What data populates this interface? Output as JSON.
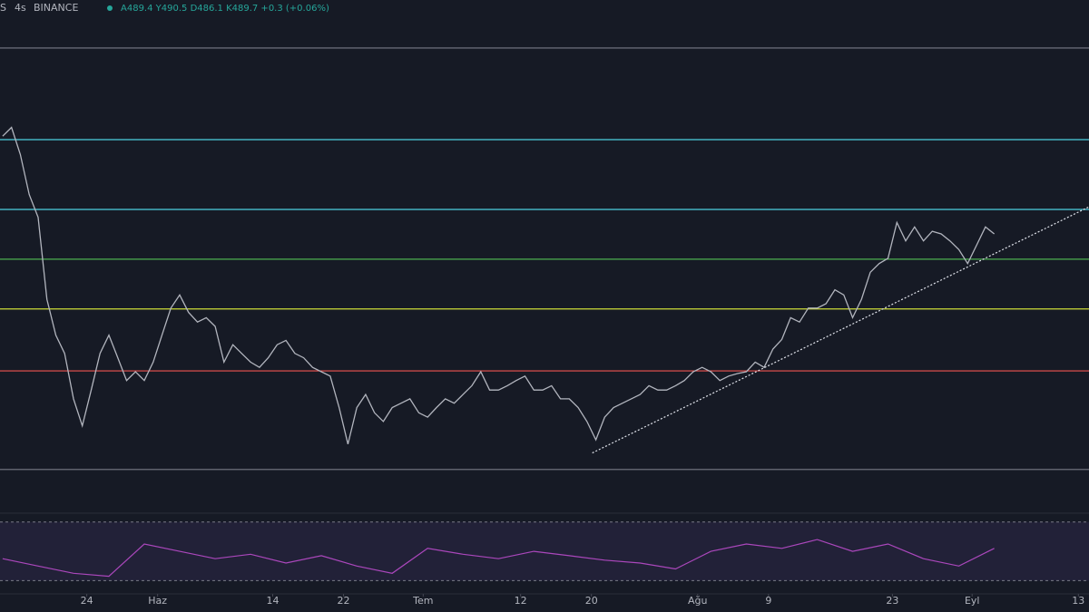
{
  "header": {
    "symbol": "S",
    "interval": "4s",
    "exchange": "BINANCE",
    "ohlc": "A489.4 Y490.5 D486.1 K489.7 +0.3 (+0.06%)"
  },
  "chart_data": {
    "type": "line",
    "x": [
      14.5,
      15.5,
      16.5,
      17.5,
      18.5,
      19.5,
      20.5,
      21.5,
      22.5,
      23.5,
      24.5,
      25.5,
      26.5,
      27.5,
      28.5,
      29.5,
      30.5,
      31.5,
      32.5,
      33.5,
      34.5,
      35.5,
      36.5,
      37.5,
      38.5,
      39.5,
      40.5,
      41.5,
      42.5,
      43.5,
      44.5,
      45.5,
      46.5,
      47.5,
      48.5,
      49.5,
      50.5,
      51.5,
      52.5,
      53.5,
      54.5,
      55.5,
      56.5,
      57.5,
      58.5,
      59.5,
      60.5,
      61.5,
      62.5,
      63.5,
      64.5,
      65.5,
      66.5,
      67.5,
      68.5,
      69.5,
      70.5,
      71.5,
      72.5,
      73.5,
      74.5,
      75.5,
      76.5,
      77.5,
      78.5,
      79.5,
      80.5,
      81.5,
      82.5,
      83.5,
      84.5,
      85.5,
      86.5,
      87.5,
      88.5,
      89.5,
      90.5,
      91.5,
      92.5,
      93.5,
      94.5,
      95.5,
      96.5,
      97.5,
      98.5,
      99.5,
      100.5,
      101.5,
      102.5,
      103.5,
      104.5,
      105.5,
      106.5,
      107.5,
      108.5,
      109.5,
      110.5,
      111.5,
      112.5,
      113.5,
      114.5,
      115.5,
      116.5,
      117.5,
      118.5,
      119.5,
      120.5,
      121.5,
      122.5,
      123.5,
      124.5,
      125.5,
      126.5
    ],
    "series": [
      {
        "color": "#b2b5be",
        "values": [
          602,
          612,
          581,
          535,
          509,
          415,
          374,
          353,
          301,
          270,
          311,
          353,
          374,
          348,
          322,
          332,
          322,
          343,
          374,
          405,
          420,
          400,
          389,
          394,
          384,
          343,
          363,
          353,
          343,
          337,
          348,
          363,
          368,
          353,
          348,
          337,
          332,
          327,
          291,
          249,
          291,
          306,
          285,
          275,
          291,
          296,
          301,
          285,
          280,
          291,
          301,
          296,
          306,
          316,
          332,
          311,
          311,
          316,
          322,
          327,
          311,
          311,
          316,
          301,
          301,
          291,
          275,
          254,
          280,
          291,
          296,
          301,
          306,
          316,
          311,
          311,
          316,
          322,
          332,
          337,
          332,
          322,
          327,
          330,
          332,
          343,
          337,
          358,
          369,
          394,
          389,
          405,
          405,
          410,
          426,
          420,
          394,
          415,
          446,
          456,
          462,
          503,
          482,
          498,
          482,
          493,
          490,
          482,
          472,
          456,
          477,
          498,
          490
        ]
      }
    ],
    "levels": [
      {
        "value": 703,
        "color": "#787b86"
      },
      {
        "value": 598,
        "color": "#4dd0e1"
      },
      {
        "value": 518,
        "color": "#4dd0e1"
      },
      {
        "value": 461,
        "color": "#4caf50"
      },
      {
        "value": 404,
        "color": "#cddc39"
      },
      {
        "value": 333,
        "color": "#ef5350"
      },
      {
        "value": 220,
        "color": "#787b86"
      }
    ],
    "trendline": {
      "x": [
        81.1,
        137.2
      ],
      "values": [
        239,
        521
      ],
      "color": "#e0e3eb"
    },
    "xlim": [
      14.2,
      137.2
    ],
    "ylim": [
      171,
      758
    ],
    "xticks": [
      {
        "value": 24,
        "label": "24"
      },
      {
        "value": 32,
        "label": "Haz"
      },
      {
        "value": 45,
        "label": "14"
      },
      {
        "value": 53,
        "label": "22"
      },
      {
        "value": 62,
        "label": "Tem"
      },
      {
        "value": 73,
        "label": "12"
      },
      {
        "value": 81,
        "label": "20"
      },
      {
        "value": 93,
        "label": "Ağu"
      },
      {
        "value": 101,
        "label": "9"
      },
      {
        "value": 115,
        "label": "23"
      },
      {
        "value": 124,
        "label": "Eyl"
      },
      {
        "value": 136,
        "label": "13"
      }
    ],
    "rsi": {
      "color": "#ab47bc",
      "x": [
        14.5,
        18.5,
        22.5,
        26.5,
        30.5,
        34.5,
        38.5,
        42.5,
        46.5,
        50.5,
        54.5,
        58.5,
        62.5,
        66.5,
        70.5,
        74.5,
        78.5,
        82.5,
        86.5,
        90.5,
        94.5,
        98.5,
        102.5,
        106.5,
        110.5,
        114.5,
        118.5,
        122.5,
        126.5
      ],
      "values": [
        45,
        40,
        35,
        33,
        55,
        50,
        45,
        48,
        42,
        47,
        40,
        35,
        52,
        48,
        45,
        50,
        47,
        44,
        42,
        38,
        50,
        55,
        52,
        58,
        50,
        55,
        45,
        40,
        52
      ],
      "ylim": [
        21,
        76
      ],
      "bands": [
        70,
        30
      ]
    }
  }
}
